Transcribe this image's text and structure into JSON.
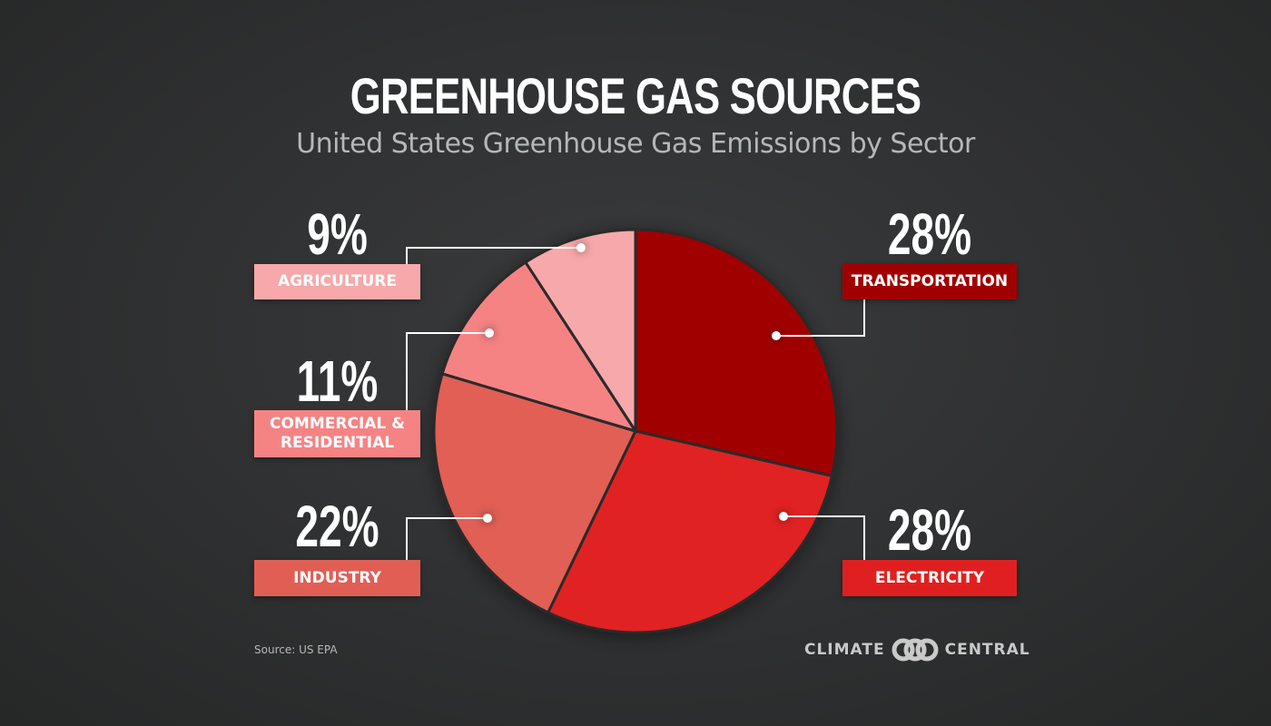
{
  "header": {
    "title": "GREENHOUSE GAS SOURCES",
    "subtitle": "United States Greenhouse Gas Emissions by Sector"
  },
  "footer": {
    "source": "Source: US EPA",
    "logo_left": "CLIMATE",
    "logo_right": "CENTRAL"
  },
  "colors": {
    "background": "#2f3031",
    "transportation": "#a10000",
    "electricity": "#e02020",
    "industry": "#e15e55",
    "commercial_residential": "#f58384",
    "agriculture": "#f7a8aa",
    "divider": "#2a2a2a"
  },
  "labels": {
    "agriculture": {
      "pct": "9%",
      "name": "AGRICULTURE"
    },
    "commercial": {
      "pct": "11%",
      "name_line1": "COMMERCIAL &",
      "name_line2": "RESIDENTIAL"
    },
    "industry": {
      "pct": "22%",
      "name": "INDUSTRY"
    },
    "transportation": {
      "pct": "28%",
      "name": "TRANSPORTATION"
    },
    "electricity": {
      "pct": "28%",
      "name": "ELECTRICITY"
    }
  },
  "chart_data": {
    "type": "pie",
    "title": "GREENHOUSE GAS SOURCES",
    "subtitle": "United States Greenhouse Gas Emissions by Sector",
    "categories": [
      "Transportation",
      "Electricity",
      "Industry",
      "Commercial & Residential",
      "Agriculture"
    ],
    "values": [
      28,
      28,
      22,
      11,
      9
    ],
    "unit": "%",
    "start_angle": "12 o'clock",
    "direction": "clockwise",
    "colors": [
      "#a10000",
      "#e02020",
      "#e15e55",
      "#f58384",
      "#f7a8aa"
    ],
    "source": "Source: US EPA",
    "legend": "callout labels with leader lines"
  }
}
